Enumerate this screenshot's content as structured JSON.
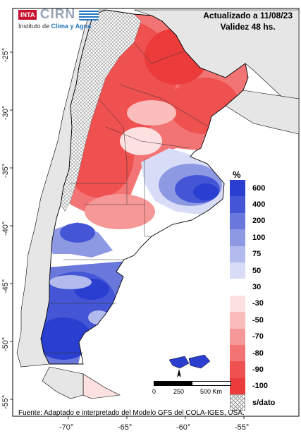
{
  "header": {
    "updated": "Actualizado a 11/08/23",
    "validity": "Validez 48 hs."
  },
  "logo": {
    "badge": "INTA",
    "name": "CIRN",
    "subtitle_prefix": "Instituto de",
    "subtitle_highlight": "Clima y Agua"
  },
  "axes": {
    "lat_ticks": [
      "-25°",
      "-30°",
      "-35°",
      "-40°",
      "-45°",
      "-50°",
      "-55°"
    ],
    "lon_ticks": [
      "-70°",
      "-65°",
      "-60°",
      "-55°"
    ]
  },
  "legend": {
    "unit": "%",
    "classes": [
      {
        "label": "600",
        "color": "#2a3fd0"
      },
      {
        "label": "400",
        "color": "#4456d6"
      },
      {
        "label": "200",
        "color": "#6a78dc"
      },
      {
        "label": "100",
        "color": "#8e99e4"
      },
      {
        "label": "75",
        "color": "#b3baee"
      },
      {
        "label": "50",
        "color": "#d8dcf7"
      },
      {
        "label": "30",
        "color": "#ffffff"
      },
      {
        "label": "-30",
        "color": "#fde0e0"
      },
      {
        "label": "-50",
        "color": "#fbbcbc"
      },
      {
        "label": "-70",
        "color": "#f79898"
      },
      {
        "label": "-80",
        "color": "#f37474"
      },
      {
        "label": "-90",
        "color": "#ef5050"
      },
      {
        "label": "-100",
        "color": "#eb3b3b"
      }
    ],
    "nodata_label": "s/dato"
  },
  "scalebar": {
    "labels": [
      "0",
      "250",
      "500 Km"
    ]
  },
  "source": "Fuente: Adaptado e interpretado del Modelo GFS del COLA-IGES, USA.",
  "colors": {
    "land_other": "#e6e6e6",
    "ocean": "#ffffff",
    "north_arrow": "#000000"
  }
}
